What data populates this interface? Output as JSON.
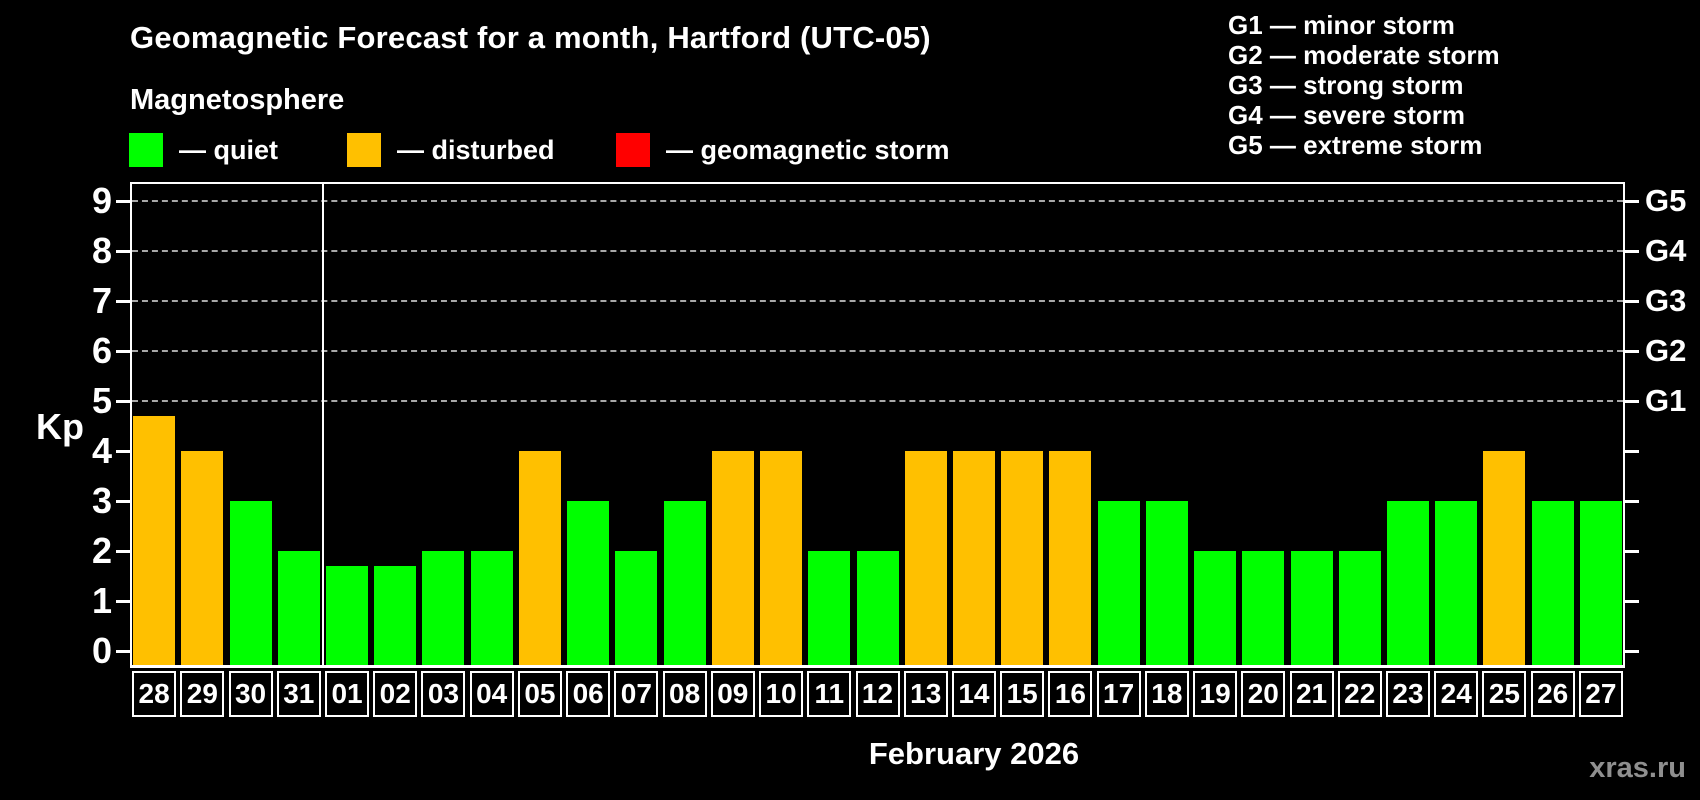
{
  "title": "Geomagnetic Forecast for a month, Hartford (UTC-05)",
  "subtitle": "Magnetosphere",
  "legend": {
    "items": [
      {
        "key": "quiet",
        "label": "— quiet",
        "color": "#00ff00"
      },
      {
        "key": "disturbed",
        "label": "— disturbed",
        "color": "#ffc000"
      },
      {
        "key": "storm",
        "label": "— geomagnetic storm",
        "color": "#ff0000"
      }
    ]
  },
  "storm_scale": {
    "items": [
      "G1 — minor storm",
      "G2 — moderate storm",
      "G3 — strong storm",
      "G4 — severe storm",
      "G5 — extreme storm"
    ]
  },
  "watermark": "xras.ru",
  "chart_data": {
    "type": "bar",
    "title": "Geomagnetic Forecast for a month, Hartford (UTC-05)",
    "xlabel": "February 2026",
    "ylabel": "Kp",
    "ylim": [
      0,
      9.4
    ],
    "yticks": [
      0,
      1,
      2,
      3,
      4,
      5,
      6,
      7,
      8,
      9
    ],
    "grid": "dashed horizontal gridlines at Kp 5 through 9",
    "legend_position": "top-left",
    "right_axis": [
      {
        "kp": 5,
        "label": "G1"
      },
      {
        "kp": 6,
        "label": "G2"
      },
      {
        "kp": 7,
        "label": "G3"
      },
      {
        "kp": 8,
        "label": "G4"
      },
      {
        "kp": 9,
        "label": "G5"
      }
    ],
    "categories": [
      "28",
      "29",
      "30",
      "31",
      "01",
      "02",
      "03",
      "04",
      "05",
      "06",
      "07",
      "08",
      "09",
      "10",
      "11",
      "12",
      "13",
      "14",
      "15",
      "16",
      "17",
      "18",
      "19",
      "20",
      "21",
      "22",
      "23",
      "24",
      "25",
      "26",
      "27"
    ],
    "values": [
      4.7,
      4,
      3,
      2,
      1.7,
      1.7,
      2,
      2,
      4,
      3,
      2,
      3,
      4,
      4,
      2,
      2,
      4,
      4,
      4,
      4,
      3,
      3,
      2,
      2,
      2,
      2,
      3,
      3,
      4,
      3,
      3
    ],
    "statuses": [
      "disturbed",
      "disturbed",
      "quiet",
      "quiet",
      "quiet",
      "quiet",
      "quiet",
      "quiet",
      "disturbed",
      "quiet",
      "quiet",
      "quiet",
      "disturbed",
      "disturbed",
      "quiet",
      "quiet",
      "disturbed",
      "disturbed",
      "disturbed",
      "disturbed",
      "quiet",
      "quiet",
      "quiet",
      "quiet",
      "quiet",
      "quiet",
      "quiet",
      "quiet",
      "disturbed",
      "quiet",
      "quiet"
    ],
    "colors": {
      "quiet": "#00ff00",
      "disturbed": "#ffc000",
      "storm": "#ff0000"
    },
    "month_separator_after_index": 3
  }
}
